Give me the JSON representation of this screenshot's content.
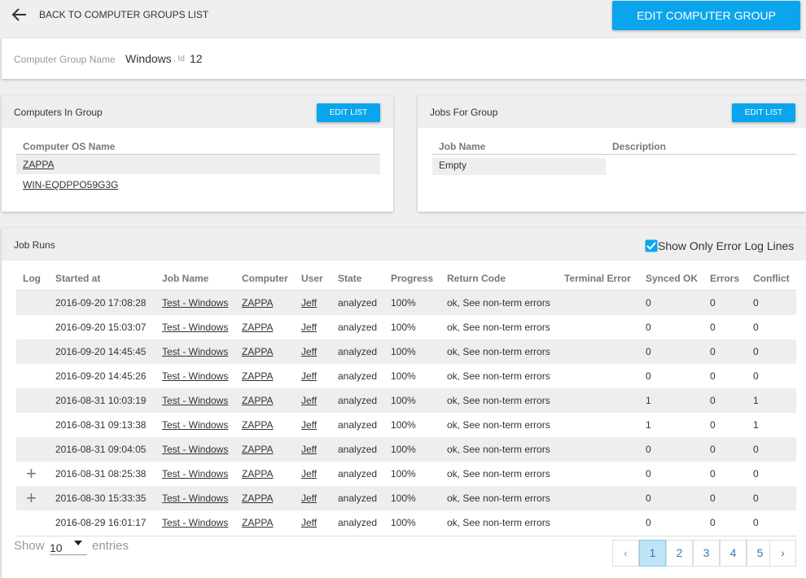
{
  "header": {
    "back_label": "BACK TO COMPUTER GROUPS LIST",
    "edit_button": "EDIT COMPUTER GROUP"
  },
  "group": {
    "name_label": "Computer Group Name",
    "name": "Windows",
    "id_label": ", Id",
    "id": 12
  },
  "computers": {
    "title": "Computers In Group",
    "button": "EDIT LIST",
    "columns": [
      "Computer OS Name"
    ],
    "rows": [
      "ZAPPA",
      "WIN-EQDPPO59G3G"
    ]
  },
  "jobs": {
    "title": "Jobs For Group",
    "button": "EDIT LIST",
    "columns": [
      "Job Name",
      "Description"
    ],
    "empty_text": "Empty"
  },
  "job_runs": {
    "title": "Job Runs",
    "filter_label": "Show Only Error Log Lines",
    "columns": [
      "Log",
      "Started at",
      "Job Name",
      "Computer",
      "User",
      "State",
      "Progress",
      "Return Code",
      "Terminal Error",
      "Synced OK",
      "Errors",
      "Conflict"
    ],
    "rows": [
      [
        null,
        "2016-09-20 17:08:28",
        "Test - Windows",
        "ZAPPA",
        "Jeff",
        "analyzed",
        "100%",
        "ok, See non-term errors",
        null,
        0,
        0,
        0
      ],
      [
        null,
        "2016-09-20 15:03:07",
        "Test - Windows",
        "ZAPPA",
        "Jeff",
        "analyzed",
        "100%",
        "ok, See non-term errors",
        null,
        0,
        0,
        0
      ],
      [
        null,
        "2016-09-20 14:45:45",
        "Test - Windows",
        "ZAPPA",
        "Jeff",
        "analyzed",
        "100%",
        "ok, See non-term errors",
        null,
        0,
        0,
        0
      ],
      [
        null,
        "2016-09-20 14:45:26",
        "Test - Windows",
        "ZAPPA",
        "Jeff",
        "analyzed",
        "100%",
        "ok, See non-term errors",
        null,
        0,
        0,
        0
      ],
      [
        null,
        "2016-08-31 10:03:19",
        "Test - Windows",
        "ZAPPA",
        "Jeff",
        "analyzed",
        "100%",
        "ok, See non-term errors",
        null,
        1,
        0,
        1
      ],
      [
        null,
        "2016-08-31 09:13:38",
        "Test - Windows",
        "ZAPPA",
        "Jeff",
        "analyzed",
        "100%",
        "ok, See non-term errors",
        null,
        1,
        0,
        1
      ],
      [
        null,
        "2016-08-31 09:04:05",
        "Test - Windows",
        "ZAPPA",
        "Jeff",
        "analyzed",
        "100%",
        "ok, See non-term errors",
        null,
        0,
        0,
        0
      ],
      [
        "+",
        "2016-08-31 08:25:38",
        "Test - Windows",
        "ZAPPA",
        "Jeff",
        "analyzed",
        "100%",
        "ok, See non-term errors",
        null,
        0,
        0,
        0
      ],
      [
        "+",
        "2016-08-30 15:33:35",
        "Test - Windows",
        "ZAPPA",
        "Jeff",
        "analyzed",
        "100%",
        "ok, See non-term errors",
        null,
        0,
        0,
        0
      ],
      [
        null,
        "2016-08-29 16:01:17",
        "Test - Windows",
        "ZAPPA",
        "Jeff",
        "analyzed",
        "100%",
        "ok, See non-term errors",
        null,
        0,
        0,
        0
      ]
    ],
    "show_label": "Show",
    "page_length": "10",
    "entries_label": "entries",
    "prev": "‹",
    "pages": [
      1,
      2,
      3,
      4,
      5
    ],
    "next": "›"
  }
}
